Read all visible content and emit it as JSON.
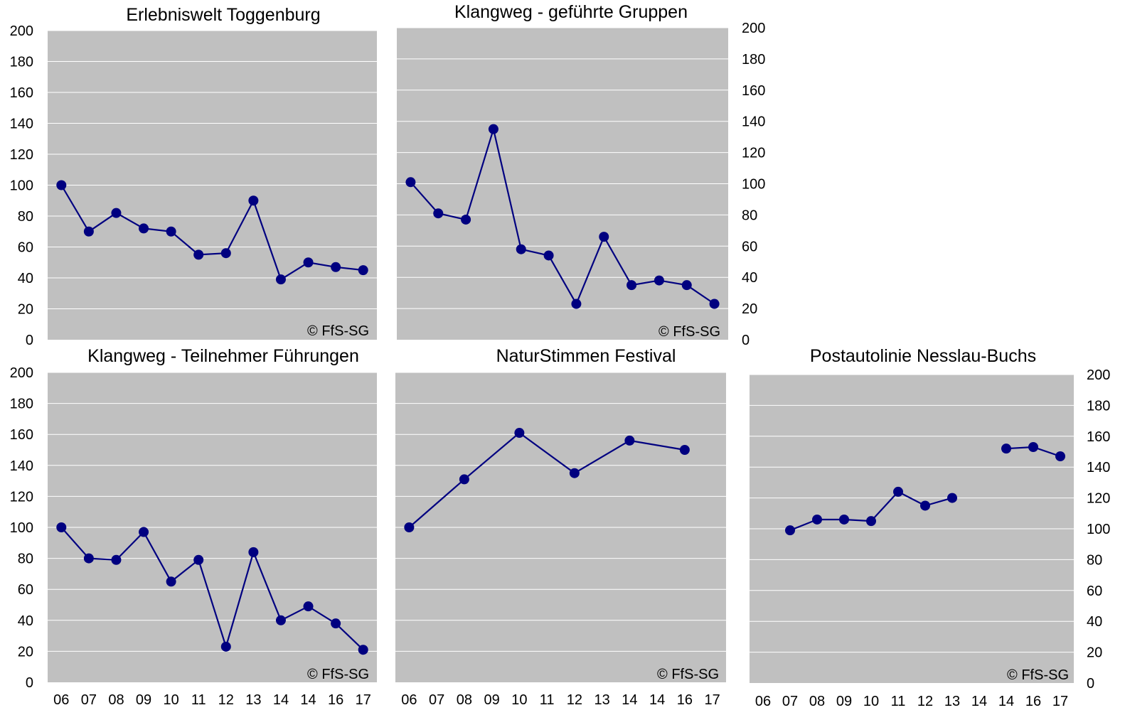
{
  "chart_data": [
    {
      "type": "line",
      "title": "Erlebniswelt Toggenburg",
      "categories": [
        "06",
        "07",
        "08",
        "09",
        "10",
        "11",
        "12",
        "13",
        "14",
        "14",
        "16",
        "17"
      ],
      "values": [
        100,
        70,
        82,
        72,
        70,
        55,
        56,
        90,
        39,
        50,
        47,
        45
      ],
      "ylim": [
        0,
        200
      ],
      "yticks": [
        "0",
        "20",
        "40",
        "60",
        "80",
        "100",
        "120",
        "140",
        "160",
        "180",
        "200"
      ],
      "show_xticks": false,
      "yaxis_side": "left",
      "grid": true,
      "annotation": "© FfS-SG",
      "colors": {
        "line": "#000080",
        "plot_bg": "#c0c0c0",
        "grid": "#ffffff"
      }
    },
    {
      "type": "line",
      "title": "Klangweg - geführte Gruppen",
      "categories": [
        "06",
        "07",
        "08",
        "09",
        "10",
        "11",
        "12",
        "13",
        "14",
        "14",
        "16",
        "17"
      ],
      "values": [
        101,
        81,
        77,
        135,
        58,
        54,
        23,
        66,
        35,
        38,
        35,
        23
      ],
      "ylim": [
        0,
        200
      ],
      "yticks": [
        "0",
        "20",
        "40",
        "60",
        "80",
        "100",
        "120",
        "140",
        "160",
        "180",
        "200"
      ],
      "show_xticks": false,
      "yaxis_side": "right",
      "grid": true,
      "annotation": "© FfS-SG",
      "colors": {
        "line": "#000080",
        "plot_bg": "#c0c0c0",
        "grid": "#ffffff"
      }
    },
    {
      "type": "line",
      "title": "Klangweg - Teilnehmer Führungen",
      "categories": [
        "06",
        "07",
        "08",
        "09",
        "10",
        "11",
        "12",
        "13",
        "14",
        "14",
        "16",
        "17"
      ],
      "values": [
        100,
        80,
        79,
        97,
        65,
        79,
        23,
        84,
        40,
        49,
        38,
        21
      ],
      "ylim": [
        0,
        200
      ],
      "yticks": [
        "0",
        "20",
        "40",
        "60",
        "80",
        "100",
        "120",
        "140",
        "160",
        "180",
        "200"
      ],
      "show_xticks": true,
      "yaxis_side": "left",
      "grid": true,
      "annotation": "© FfS-SG",
      "colors": {
        "line": "#000080",
        "plot_bg": "#c0c0c0",
        "grid": "#ffffff"
      }
    },
    {
      "type": "line",
      "title": "NaturStimmen Festival",
      "categories": [
        "06",
        "07",
        "08",
        "09",
        "10",
        "11",
        "12",
        "13",
        "14",
        "14",
        "16",
        "17"
      ],
      "values": [
        100,
        null,
        131,
        null,
        161,
        null,
        135,
        null,
        156,
        null,
        150,
        null
      ],
      "connect_gaps": true,
      "ylim": [
        0,
        200
      ],
      "show_xticks": true,
      "yaxis_side": "none",
      "grid": true,
      "annotation": "© FfS-SG",
      "colors": {
        "line": "#000080",
        "plot_bg": "#c0c0c0",
        "grid": "#ffffff"
      }
    },
    {
      "type": "line",
      "title": "Postautolinie Nesslau-Buchs",
      "categories": [
        "06",
        "07",
        "08",
        "09",
        "10",
        "11",
        "12",
        "13",
        "14",
        "14",
        "16",
        "17"
      ],
      "values": [
        null,
        99,
        106,
        106,
        105,
        124,
        115,
        120,
        null,
        152,
        153,
        147
      ],
      "connect_gaps": false,
      "ylim": [
        0,
        200
      ],
      "yticks": [
        "0",
        "20",
        "40",
        "60",
        "80",
        "100",
        "120",
        "140",
        "160",
        "180",
        "200"
      ],
      "show_xticks": true,
      "yaxis_side": "right",
      "grid": true,
      "annotation": "© FfS-SG",
      "colors": {
        "line": "#000080",
        "plot_bg": "#c0c0c0",
        "grid": "#ffffff"
      }
    }
  ]
}
